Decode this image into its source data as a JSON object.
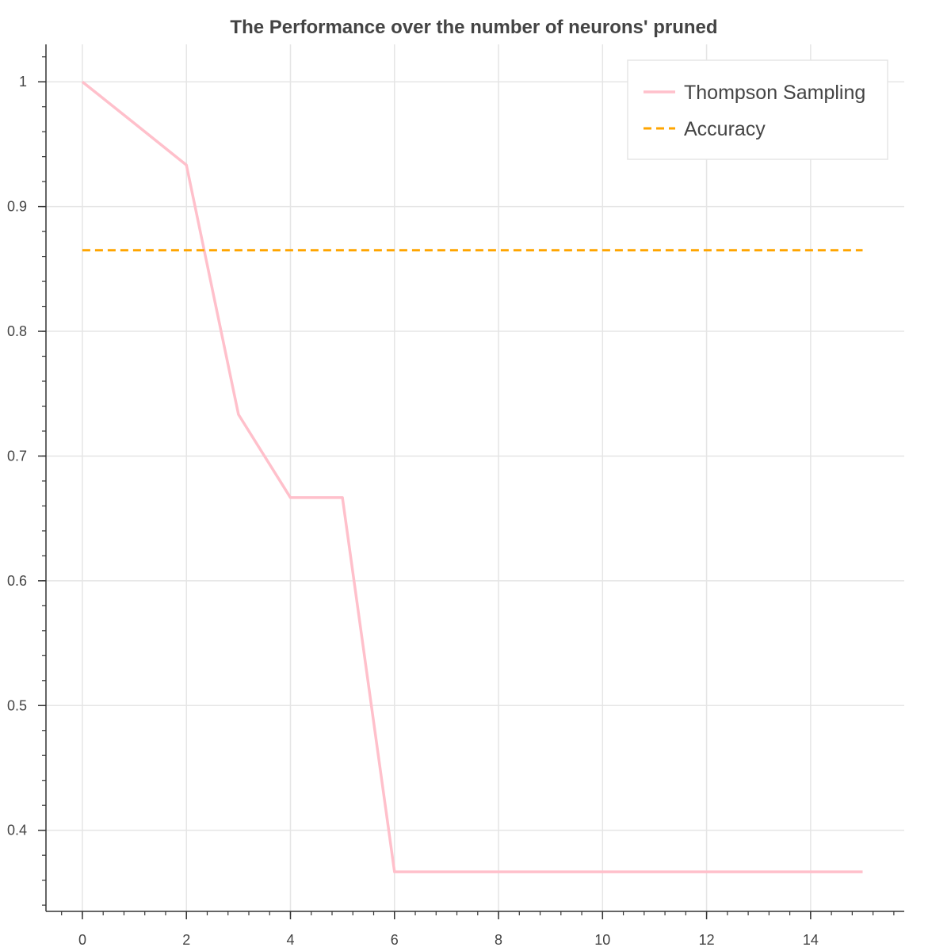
{
  "chart_data": {
    "type": "line",
    "title": "The Performance over the number of neurons' pruned",
    "xlabel": "",
    "ylabel": "",
    "xlim": [
      -0.7,
      15.8
    ],
    "ylim": [
      0.335,
      1.03
    ],
    "x_ticks": [
      "0",
      "2",
      "4",
      "6",
      "8",
      "10",
      "12",
      "14"
    ],
    "y_ticks": [
      "0.4",
      "0.5",
      "0.6",
      "0.7",
      "0.8",
      "0.9",
      "1"
    ],
    "grid": true,
    "legend_position": "top-right",
    "series": [
      {
        "name": "Thompson Sampling",
        "style": "solid",
        "color": "#ffc0cb",
        "x": [
          0,
          1,
          2,
          3,
          4,
          5,
          6,
          7,
          8,
          9,
          10,
          11,
          12,
          13,
          14,
          15
        ],
        "y": [
          1.0,
          0.9667,
          0.9333,
          0.7333,
          0.6667,
          0.6667,
          0.3667,
          0.3667,
          0.3667,
          0.3667,
          0.3667,
          0.3667,
          0.3667,
          0.3667,
          0.3667,
          0.3667
        ]
      },
      {
        "name": "Accuracy",
        "style": "dashed",
        "color": "#ffa500",
        "x": [
          0,
          15
        ],
        "y": [
          0.865,
          0.865
        ]
      }
    ]
  }
}
